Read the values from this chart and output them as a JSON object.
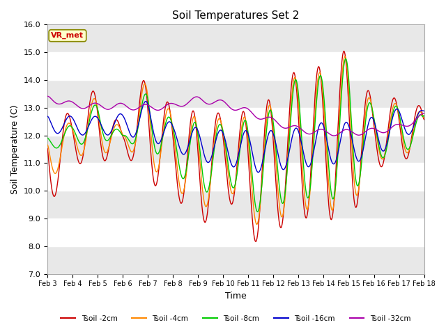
{
  "title": "Soil Temperatures Set 2",
  "xlabel": "Time",
  "ylabel": "Soil Temperature (C)",
  "ylim": [
    7.0,
    16.0
  ],
  "yticks": [
    7.0,
    8.0,
    9.0,
    10.0,
    11.0,
    12.0,
    13.0,
    14.0,
    15.0,
    16.0
  ],
  "xtick_labels": [
    "Feb 3",
    "Feb 4",
    "Feb 5",
    "Feb 6",
    "Feb 7",
    "Feb 8",
    "Feb 9",
    "Feb 10",
    "Feb 11",
    "Feb 12",
    "Feb 13",
    "Feb 14",
    "Feb 15",
    "Feb 16",
    "Feb 17",
    "Feb 18"
  ],
  "series_colors": {
    "Tsoil -2cm": "#cc0000",
    "Tsoil -4cm": "#ff8800",
    "Tsoil -8cm": "#00cc00",
    "Tsoil -16cm": "#0000cc",
    "Tsoil -32cm": "#aa00aa"
  },
  "background_color": "#ffffff",
  "plot_bg_color": "#ffffff",
  "annotation_text": "VR_met",
  "annotation_bg": "#ffffcc",
  "annotation_edge": "#888800",
  "annotation_text_color": "#cc0000"
}
